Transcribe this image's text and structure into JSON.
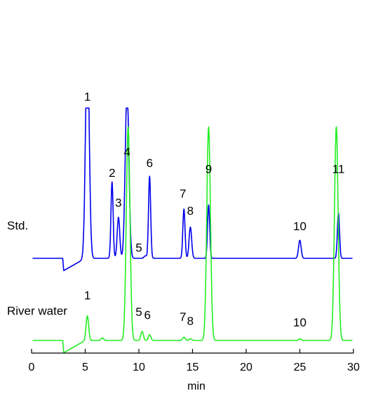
{
  "chart_data": {
    "type": "line",
    "title": "",
    "xlabel": "min",
    "ylabel": "",
    "xlim": [
      0,
      30
    ],
    "x_ticks": [
      "0",
      "5",
      "10",
      "15",
      "20",
      "25",
      "30"
    ],
    "grid": false,
    "legend": "none",
    "series": [
      {
        "name": "Std.",
        "color": "#0000ee",
        "baseline_offset": 1.0,
        "peaks": [
          {
            "label": "1",
            "t": 5.2,
            "height": 2.7
          },
          {
            "label": "2",
            "t": 7.5,
            "height": 0.93
          },
          {
            "label": "3",
            "t": 8.1,
            "height": 0.5
          },
          {
            "label": "4",
            "t": 8.9,
            "height": 2.07
          },
          {
            "label": "5",
            "t": 10.6,
            "height": 0.03
          },
          {
            "label": "6",
            "t": 11.0,
            "height": 1.0
          },
          {
            "label": "7",
            "t": 14.2,
            "height": 0.6
          },
          {
            "label": "8",
            "t": 14.8,
            "height": 0.38
          },
          {
            "label": "9",
            "t": 16.5,
            "height": 0.65
          },
          {
            "label": "10",
            "t": 25.0,
            "height": 0.22
          },
          {
            "label": "11",
            "t": 28.6,
            "height": 0.55
          }
        ]
      },
      {
        "name": "River water",
        "color": "#22ee22",
        "baseline_offset": 0.0,
        "peaks": [
          {
            "label": "1",
            "t": 5.2,
            "height": 0.3
          },
          {
            "label": "",
            "t": 6.6,
            "height": 0.03
          },
          {
            "label": "",
            "t": 9.0,
            "height": 2.6
          },
          {
            "label": "5",
            "t": 10.3,
            "height": 0.11
          },
          {
            "label": "6",
            "t": 11.0,
            "height": 0.07
          },
          {
            "label": "7",
            "t": 14.2,
            "height": 0.04
          },
          {
            "label": "8",
            "t": 14.8,
            "height": 0.02
          },
          {
            "label": "",
            "t": 16.5,
            "height": 2.6
          },
          {
            "label": "10",
            "t": 25.0,
            "height": 0.02
          },
          {
            "label": "",
            "t": 28.4,
            "height": 2.6
          }
        ]
      }
    ],
    "peak_labels": [
      {
        "text": "1",
        "t": 5.2,
        "level": 2.92
      },
      {
        "text": "2",
        "t": 7.5,
        "level": 1.99
      },
      {
        "text": "3",
        "t": 8.1,
        "level": 1.63
      },
      {
        "text": "4",
        "t": 8.9,
        "level": 2.25
      },
      {
        "text": "5",
        "t": 10.0,
        "level": 1.08
      },
      {
        "text": "6",
        "t": 11.0,
        "level": 2.11
      },
      {
        "text": "7",
        "t": 14.1,
        "level": 1.74
      },
      {
        "text": "8",
        "t": 14.8,
        "level": 1.53
      },
      {
        "text": "9",
        "t": 16.5,
        "level": 2.04
      },
      {
        "text": "10",
        "t": 25.0,
        "level": 1.34
      },
      {
        "text": "11",
        "t": 28.6,
        "level": 2.04
      },
      {
        "text": "1",
        "t": 5.2,
        "level": 0.5
      },
      {
        "text": "5",
        "t": 10.0,
        "level": 0.3
      },
      {
        "text": "6",
        "t": 10.8,
        "level": 0.26
      },
      {
        "text": "7",
        "t": 14.1,
        "level": 0.24
      },
      {
        "text": "8",
        "t": 14.8,
        "level": 0.19
      },
      {
        "text": "10",
        "t": 25.0,
        "level": 0.17
      }
    ],
    "trace_labels": [
      {
        "text": "Std.",
        "level": 1.35
      },
      {
        "text": "River water",
        "level": 0.31
      }
    ]
  }
}
